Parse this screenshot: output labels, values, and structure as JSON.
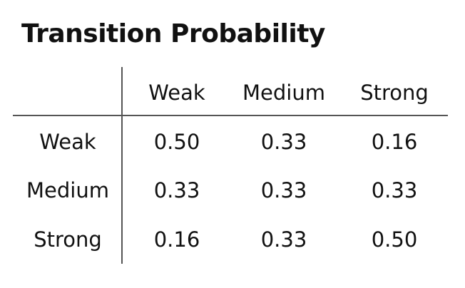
{
  "title": "Transition Probability",
  "table": {
    "columns": [
      "Weak",
      "Medium",
      "Strong"
    ],
    "rows": [
      {
        "label": "Weak",
        "values": [
          "0.50",
          "0.33",
          "0.16"
        ]
      },
      {
        "label": "Medium",
        "values": [
          "0.33",
          "0.33",
          "0.33"
        ]
      },
      {
        "label": "Strong",
        "values": [
          "0.16",
          "0.33",
          "0.50"
        ]
      }
    ]
  }
}
